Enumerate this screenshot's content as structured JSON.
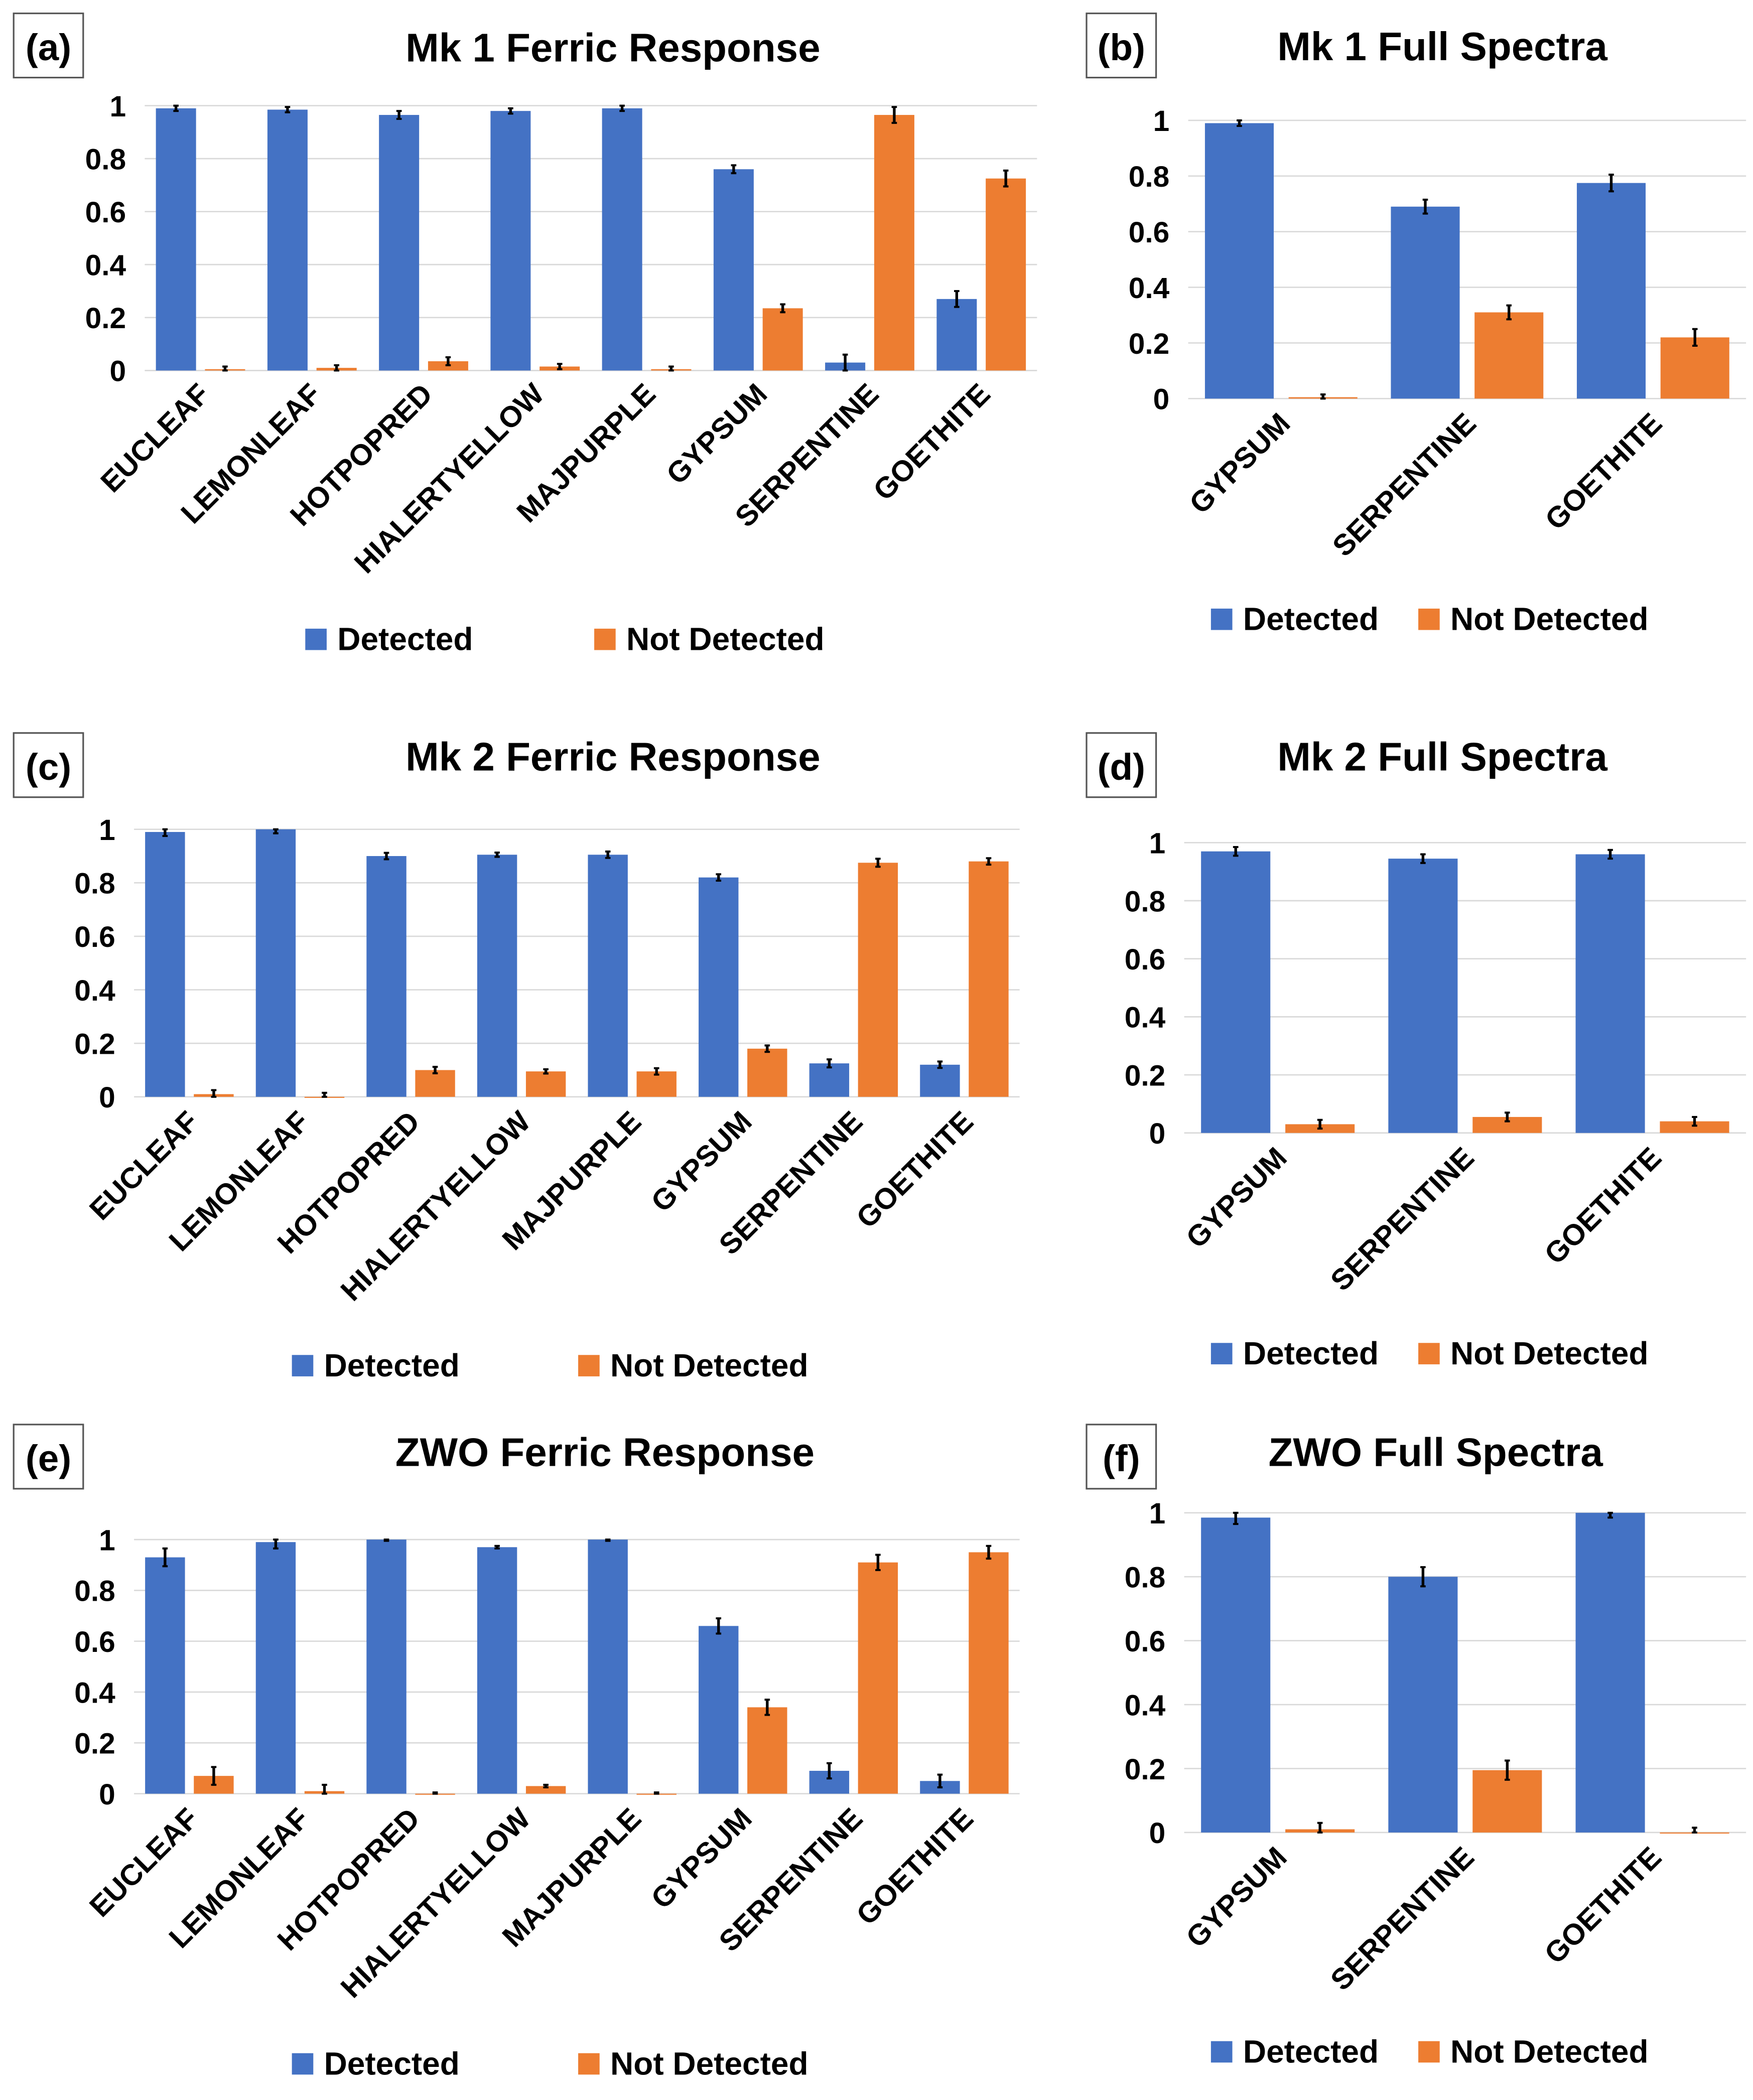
{
  "colors": {
    "detected": "#4472C4",
    "not_detected": "#ED7D31",
    "grid": "#D9D9D9",
    "error": "#000000"
  },
  "legend": {
    "detected": "Detected",
    "not_detected": "Not Detected"
  },
  "chart_data": [
    {
      "panel": "(a)",
      "type": "bar",
      "title": "Mk 1 Ferric Response",
      "ylim": [
        0,
        1
      ],
      "yticks": [
        "0",
        "0.2",
        "0.4",
        "0.6",
        "0.8",
        "1"
      ],
      "grid": true,
      "legend_position": "bottom",
      "categories": [
        "EUCLEAF",
        "LEMONLEAF",
        "HOTPOPRED",
        "HIALERTYELLOW",
        "MAJPURPLE",
        "GYPSUM",
        "SERPENTINE",
        "GOETHITE"
      ],
      "series": [
        {
          "name": "Detected",
          "values": [
            0.99,
            0.985,
            0.965,
            0.98,
            0.99,
            0.76,
            0.03,
            0.27
          ],
          "errors": [
            0.01,
            0.01,
            0.015,
            0.01,
            0.01,
            0.015,
            0.03,
            0.03
          ]
        },
        {
          "name": "Not Detected",
          "values": [
            0.005,
            0.01,
            0.035,
            0.015,
            0.005,
            0.235,
            0.965,
            0.725
          ],
          "errors": [
            0.01,
            0.01,
            0.015,
            0.01,
            0.01,
            0.015,
            0.03,
            0.03
          ]
        }
      ]
    },
    {
      "panel": "(b)",
      "type": "bar",
      "title": "Mk 1 Full Spectra",
      "ylim": [
        0,
        1
      ],
      "yticks": [
        "0",
        "0.2",
        "0.4",
        "0.6",
        "0.8",
        "1"
      ],
      "grid": true,
      "legend_position": "bottom",
      "categories": [
        "GYPSUM",
        "SERPENTINE",
        "GOETHITE"
      ],
      "series": [
        {
          "name": "Detected",
          "values": [
            0.99,
            0.69,
            0.775
          ],
          "errors": [
            0.01,
            0.025,
            0.03
          ]
        },
        {
          "name": "Not Detected",
          "values": [
            0.005,
            0.31,
            0.22
          ],
          "errors": [
            0.01,
            0.025,
            0.03
          ]
        }
      ]
    },
    {
      "panel": "(c)",
      "type": "bar",
      "title": "Mk 2 Ferric Response",
      "ylim": [
        0,
        1
      ],
      "yticks": [
        "0",
        "0.2",
        "0.4",
        "0.6",
        "0.8",
        "1"
      ],
      "grid": true,
      "legend_position": "bottom",
      "categories": [
        "EUCLEAF",
        "LEMONLEAF",
        "HOTPOPRED",
        "HIALERTYELLOW",
        "MAJPURPLE",
        "GYPSUM",
        "SERPENTINE",
        "GOETHITE"
      ],
      "series": [
        {
          "name": "Detected",
          "values": [
            0.99,
            1.0,
            0.9,
            0.905,
            0.905,
            0.82,
            0.125,
            0.12
          ],
          "errors": [
            0.015,
            0.015,
            0.012,
            0.008,
            0.012,
            0.012,
            0.015,
            0.012
          ]
        },
        {
          "name": "Not Detected",
          "values": [
            0.01,
            0.0,
            0.1,
            0.095,
            0.095,
            0.18,
            0.875,
            0.88
          ],
          "errors": [
            0.015,
            0.015,
            0.012,
            0.008,
            0.012,
            0.012,
            0.015,
            0.012
          ]
        }
      ]
    },
    {
      "panel": "(d)",
      "type": "bar",
      "title": "Mk 2 Full Spectra",
      "ylim": [
        0,
        1
      ],
      "yticks": [
        "0",
        "0.2",
        "0.4",
        "0.6",
        "0.8",
        "1"
      ],
      "grid": true,
      "legend_position": "bottom",
      "categories": [
        "GYPSUM",
        "SERPENTINE",
        "GOETHITE"
      ],
      "series": [
        {
          "name": "Detected",
          "values": [
            0.97,
            0.945,
            0.96
          ],
          "errors": [
            0.015,
            0.015,
            0.015
          ]
        },
        {
          "name": "Not Detected",
          "values": [
            0.03,
            0.055,
            0.04
          ],
          "errors": [
            0.015,
            0.015,
            0.015
          ]
        }
      ]
    },
    {
      "panel": "(e)",
      "type": "bar",
      "title": "ZWO Ferric Response",
      "ylim": [
        0,
        1
      ],
      "yticks": [
        "0",
        "0.2",
        "0.4",
        "0.6",
        "0.8",
        "1"
      ],
      "grid": true,
      "legend_position": "bottom",
      "categories": [
        "EUCLEAF",
        "LEMONLEAF",
        "HOTPOPRED",
        "HIALERTYELLOW",
        "MAJPURPLE",
        "GYPSUM",
        "SERPENTINE",
        "GOETHITE"
      ],
      "series": [
        {
          "name": "Detected",
          "values": [
            0.93,
            0.99,
            1.0,
            0.97,
            1.0,
            0.66,
            0.09,
            0.05
          ],
          "errors": [
            0.035,
            0.025,
            0.005,
            0.005,
            0.005,
            0.03,
            0.03,
            0.025
          ]
        },
        {
          "name": "Not Detected",
          "values": [
            0.07,
            0.01,
            0.0,
            0.03,
            0.0,
            0.34,
            0.91,
            0.95
          ],
          "errors": [
            0.035,
            0.025,
            0.005,
            0.005,
            0.005,
            0.03,
            0.03,
            0.025
          ]
        }
      ]
    },
    {
      "panel": "(f)",
      "type": "bar",
      "title": "ZWO Full Spectra",
      "ylim": [
        0,
        1
      ],
      "yticks": [
        "0",
        "0.2",
        "0.4",
        "0.6",
        "0.8",
        "1"
      ],
      "grid": true,
      "legend_position": "bottom",
      "categories": [
        "GYPSUM",
        "SERPENTINE",
        "GOETHITE"
      ],
      "series": [
        {
          "name": "Detected",
          "values": [
            0.985,
            0.8,
            1.0
          ],
          "errors": [
            0.02,
            0.03,
            0.015
          ]
        },
        {
          "name": "Not Detected",
          "values": [
            0.01,
            0.195,
            0.0
          ],
          "errors": [
            0.02,
            0.03,
            0.015
          ]
        }
      ]
    }
  ]
}
